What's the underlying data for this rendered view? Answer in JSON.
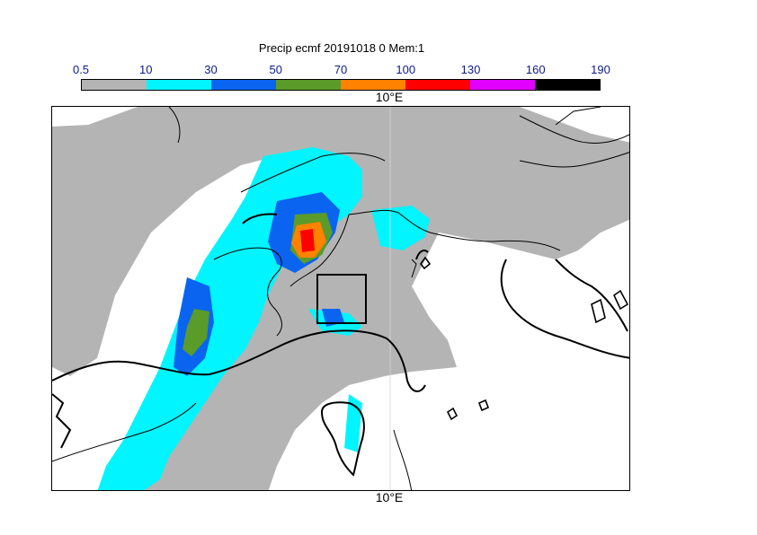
{
  "title": "Precip ecmf 20191018 0 Mem:1",
  "colorbar": {
    "ticks": [
      "0.5",
      "10",
      "30",
      "50",
      "70",
      "100",
      "130",
      "160",
      "190"
    ],
    "colors": [
      "#b4b4b4",
      "#00f5ff",
      "#0a64f0",
      "#5a9b2a",
      "#ff8200",
      "#ff0000",
      "#e100ff",
      "#000000"
    ]
  },
  "axis": {
    "lon_label_top": "10°E",
    "lon_label_bottom": "10°E"
  }
}
